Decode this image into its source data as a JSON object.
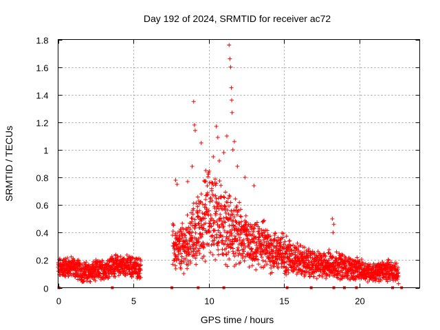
{
  "chart_data": {
    "type": "scatter",
    "title": "Day 192 of 2024, SRMTID for receiver ac72",
    "xlabel": "GPS time / hours",
    "ylabel": "SRMTID / TECUs",
    "xlim": [
      0,
      24
    ],
    "ylim": [
      0,
      1.8
    ],
    "grid": true,
    "marker": "+",
    "color": "#ff0000",
    "xticks": [
      0,
      5,
      10,
      15,
      20
    ],
    "xtick_labels": [
      "0",
      "5",
      "10",
      "15",
      "20"
    ],
    "yticks": [
      0,
      0.2,
      0.4,
      0.6,
      0.8,
      1.0,
      1.2,
      1.4,
      1.6,
      1.8
    ],
    "ytick_labels": [
      "0",
      "0.2",
      "0.4",
      "0.6",
      "0.8",
      "1",
      "1.2",
      "1.4",
      "1.6",
      "1.8"
    ],
    "series": [
      {
        "name": "SRMTID",
        "profile": {
          "hours": [
            0.0,
            0.5,
            1.0,
            1.5,
            2.0,
            2.5,
            3.0,
            3.5,
            4.0,
            4.5,
            5.0,
            5.5
          ],
          "median": [
            0.14,
            0.15,
            0.15,
            0.12,
            0.11,
            0.12,
            0.13,
            0.16,
            0.16,
            0.16,
            0.15,
            0.14
          ]
        },
        "profile2": {
          "hours": [
            7.6,
            8.0,
            8.5,
            9.0,
            9.5,
            10.0,
            10.5,
            11.0,
            11.5,
            12.0,
            12.5,
            13.0,
            13.5,
            14.0,
            14.5,
            15.0,
            15.5,
            16.0,
            16.5,
            17.0,
            17.5,
            18.0,
            18.5,
            19.0,
            19.5,
            20.0,
            20.5,
            21.0,
            21.5,
            22.0,
            22.6
          ],
          "median": [
            0.3,
            0.27,
            0.32,
            0.38,
            0.45,
            0.55,
            0.52,
            0.45,
            0.42,
            0.38,
            0.33,
            0.28,
            0.32,
            0.27,
            0.26,
            0.25,
            0.22,
            0.2,
            0.18,
            0.17,
            0.16,
            0.17,
            0.17,
            0.15,
            0.14,
            0.13,
            0.12,
            0.11,
            0.12,
            0.13,
            0.1
          ]
        },
        "peaks": [
          {
            "x": 7.8,
            "y": 0.78
          },
          {
            "x": 7.9,
            "y": 0.75
          },
          {
            "x": 8.6,
            "y": 0.77
          },
          {
            "x": 8.9,
            "y": 0.88
          },
          {
            "x": 9.0,
            "y": 1.35
          },
          {
            "x": 9.05,
            "y": 1.18
          },
          {
            "x": 9.1,
            "y": 1.14
          },
          {
            "x": 9.5,
            "y": 1.05
          },
          {
            "x": 9.8,
            "y": 0.85
          },
          {
            "x": 10.3,
            "y": 0.95
          },
          {
            "x": 10.5,
            "y": 1.17
          },
          {
            "x": 10.6,
            "y": 1.09
          },
          {
            "x": 10.7,
            "y": 0.92
          },
          {
            "x": 11.0,
            "y": 0.98
          },
          {
            "x": 11.2,
            "y": 1.1
          },
          {
            "x": 11.35,
            "y": 1.76
          },
          {
            "x": 11.4,
            "y": 1.66
          },
          {
            "x": 11.45,
            "y": 1.6
          },
          {
            "x": 11.5,
            "y": 1.45
          },
          {
            "x": 11.52,
            "y": 1.36
          },
          {
            "x": 11.55,
            "y": 1.27
          },
          {
            "x": 11.6,
            "y": 1.0
          },
          {
            "x": 11.7,
            "y": 1.06
          },
          {
            "x": 11.9,
            "y": 0.88
          },
          {
            "x": 12.4,
            "y": 0.8
          },
          {
            "x": 13.0,
            "y": 0.74
          },
          {
            "x": 18.2,
            "y": 0.5
          },
          {
            "x": 18.3,
            "y": 0.46
          },
          {
            "x": 18.25,
            "y": 0.4
          }
        ],
        "zero_markers": [
          0.05,
          3.6,
          7.55,
          9.3,
          11.0,
          15.2,
          16.8,
          18.3,
          19.0,
          19.8,
          22.2,
          22.8
        ]
      }
    ]
  }
}
